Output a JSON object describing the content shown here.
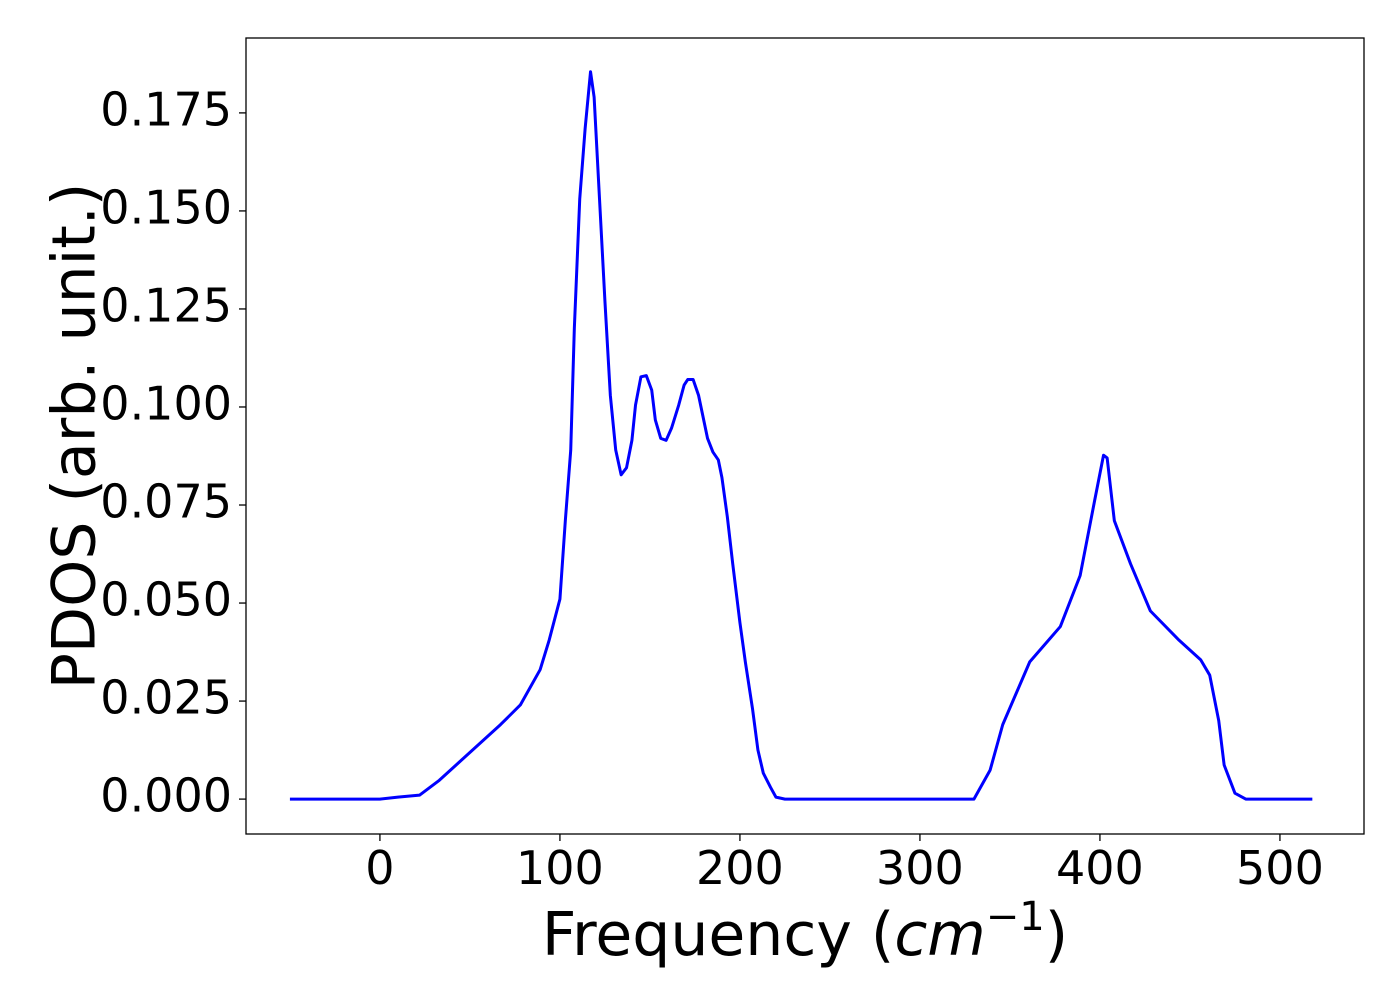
{
  "chart_data": {
    "type": "line",
    "xlabel": {
      "prefix": "Frequency (",
      "unit": "cm",
      "exponent": "−1",
      "suffix": ")"
    },
    "ylabel": "PDOS (arb. unit.)",
    "xlim": [
      -74.4,
      546.7
    ],
    "ylim": [
      -0.0089,
      0.1941
    ],
    "xticks": [
      0,
      100,
      200,
      300,
      400,
      500
    ],
    "yticks": [
      {
        "value": 0,
        "label": "0.000"
      },
      {
        "value": 0.025,
        "label": "0.025"
      },
      {
        "value": 0.05,
        "label": "0.050"
      },
      {
        "value": 0.075,
        "label": "0.075"
      },
      {
        "value": 0.1,
        "label": "0.100"
      },
      {
        "value": 0.125,
        "label": "0.125"
      },
      {
        "value": 0.15,
        "label": "0.150"
      },
      {
        "value": 0.175,
        "label": "0.175"
      }
    ],
    "x": [
      -50,
      0,
      10,
      22,
      33,
      44,
      67,
      78,
      89,
      94,
      100,
      103,
      106,
      108,
      111,
      114,
      117,
      119,
      122,
      125,
      128,
      131,
      134,
      137,
      140,
      142,
      145,
      148,
      151,
      153,
      156,
      159,
      162,
      166,
      169,
      171,
      174,
      177,
      182,
      185,
      188,
      190,
      193,
      196,
      200,
      203,
      207,
      210,
      213,
      217,
      220,
      225,
      330,
      339,
      346,
      361,
      378,
      389,
      397,
      402,
      404,
      408,
      417,
      428,
      444,
      456,
      461,
      466,
      469,
      475,
      481,
      518
    ],
    "series": [
      {
        "name": "PDOS",
        "color": "#0000ff",
        "values": [
          0,
          0,
          0.0005,
          0.001,
          0.0048,
          0.0094,
          0.019,
          0.024,
          0.033,
          0.0405,
          0.051,
          0.071,
          0.089,
          0.12,
          0.153,
          0.171,
          0.1855,
          0.179,
          0.153,
          0.127,
          0.103,
          0.089,
          0.0827,
          0.0845,
          0.0915,
          0.1005,
          0.1077,
          0.108,
          0.1043,
          0.0967,
          0.092,
          0.0915,
          0.0946,
          0.1005,
          0.1056,
          0.107,
          0.107,
          0.103,
          0.092,
          0.0885,
          0.0865,
          0.082,
          0.072,
          0.06,
          0.045,
          0.035,
          0.023,
          0.0125,
          0.0066,
          0.003,
          0.0005,
          0,
          0,
          0.0074,
          0.019,
          0.035,
          0.044,
          0.057,
          0.076,
          0.0877,
          0.087,
          0.071,
          0.06,
          0.048,
          0.0405,
          0.0355,
          0.0316,
          0.02,
          0.0087,
          0.0015,
          0,
          0
        ]
      }
    ]
  }
}
